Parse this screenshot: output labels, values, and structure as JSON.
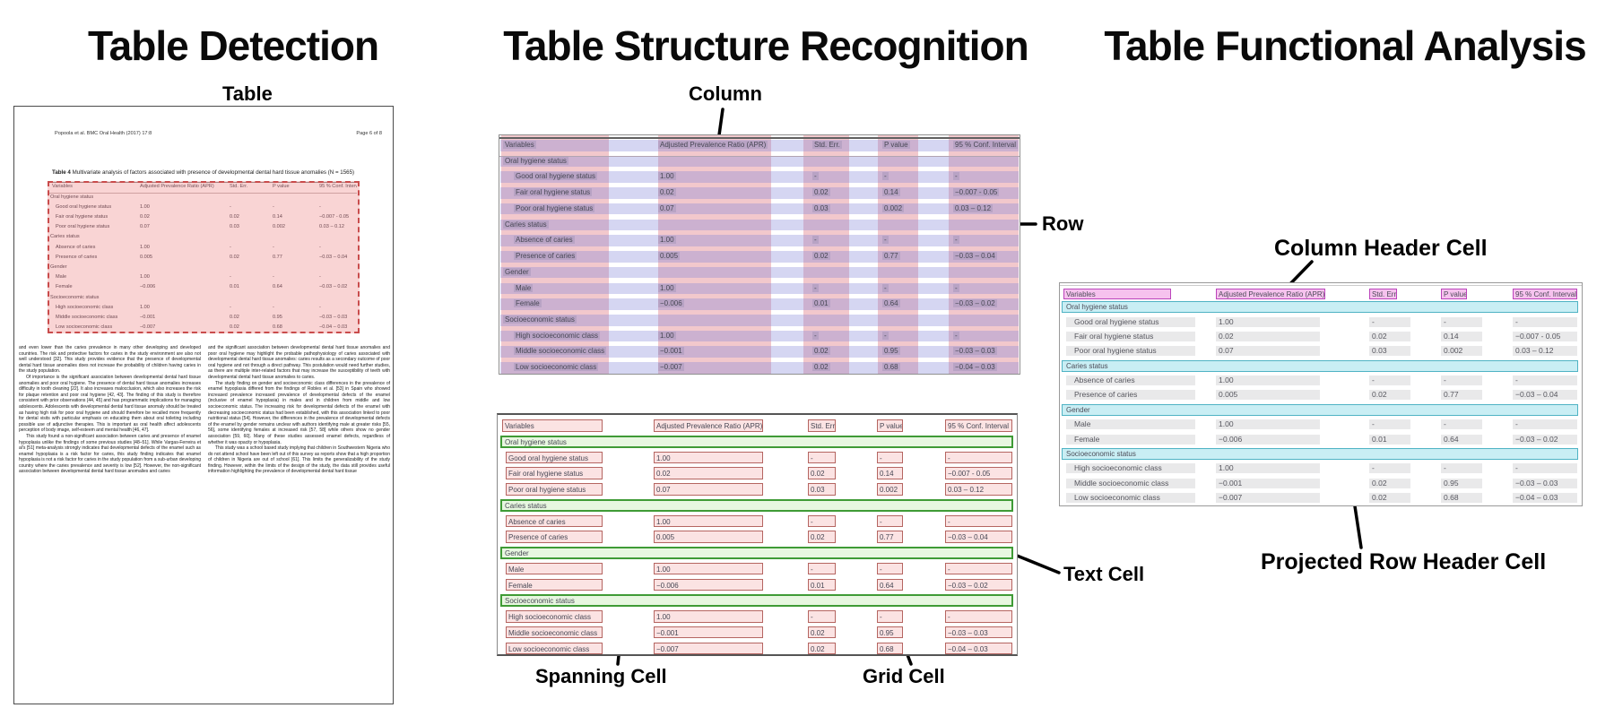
{
  "panels": {
    "detection": {
      "title": "Table Detection",
      "labels": {
        "table": "Table"
      },
      "doc": {
        "header_left": "Popoola et al. BMC Oral Health  (2017) 17:8",
        "header_right": "Page 6 of 8",
        "caption_bold": "Table 4",
        "caption_rest": " Multivariate analysis of factors associated with presence of developmental dental hard tissue anomalies (N = 1565)",
        "body_left": [
          "and even lower than the caries prevalence in many other developing and developed countries. The risk and protective factors for caries in the study environment are also not well understood [32]. This study provides evidence that the presence of developmental dental hard tissue anomalies does not increase the probability of children having caries in the study population.",
          "Of importance is the significant association between developmental dental hard tissue anomalies and poor oral hygiene. The presence of dental hard tissue anomalies increases difficulty in tooth cleaning [22]. It also increases malocclusion, which also increases the risk for plaque retention and poor oral hygiene [42, 43]. The finding of this study is therefore consistent with prior observations [44, 45] and has programmatic implications for managing adolescents. Adolescents with developmental dental hard tissue anomaly should be treated as having high risk for poor oral hygiene and should therefore be recalled more frequently for dental visits with particular emphasis on educating them about oral toileting including possible use of adjunctive therapies. This is important as oral health affect adolescents perception of body image, self-esteem and mental health [46, 47].",
          "This study found a non-significant association between caries and presence of enamel hypoplasia unlike the findings of some previous studies [48–51]. While Vargas-Ferreira et al's [51] meta-analysis strongly indicates that developmental defects of the enamel such as enamel hypoplasia is a risk factor for caries, this study finding indicates that enamel hypoplasia is not a risk factor for caries in the study population from a sub-urban developing country where the caries prevalence and severity is low [52]. However, the non-significant association between developmental dental hard tissue anomalies and caries"
        ],
        "body_right": [
          "and the significant association between developmental dental hard tissue anomalies and poor oral hygiene may highlight the probable pathophysiology of caries associated with developmental dental hard tissue anomalies: caries results as a secondary outcome of poor oral hygiene and not through a direct pathway. This postulation would need further studies, as there are multiple inter-related factors that may increase the susceptibility of teeth with developmental dental hard tissue anomalies to caries.",
          "The study finding on gender and socioeconomic class differences in the prevalence of enamel hypoplasia differed from the findings of Robles et al. [53] in Spain who showed increased prevalence increased prevalence of developmental defects of the enamel (inclusive of enamel hypoplasia) in males and in children from middle and low socioeconomic status. The increasing risk for developmental defects of the enamel with decreasing socioeconomic status had been established, with this association linked to poor nutritional status [54]. However, the differences in the prevalence of developmental defects of the enamel by gender remains unclear with authors identifying male at greater risks [55, 56], some identifying females at increased risk [57, 58] while others show no gender association [59, 60]. Many of these studies assessed enamel defects, regardless of whether it was opacity or hypoplasia.",
          "This study was a school based study implying that children in Southwestern Nigeria who do not attend school have been left out of this survey as reports show that a high proportion of children in Nigeria are out of school [61]. This limits the generalizability of the study finding. However, within the limits of the design of the study, the data still provides useful information highlighting the prevalence of developmental dental hard tissue"
        ]
      }
    },
    "structure": {
      "title": "Table Structure Recognition",
      "labels": {
        "column": "Column",
        "row": "Row",
        "text_cell": "Text Cell",
        "spanning_cell": "Spanning Cell",
        "grid_cell": "Grid Cell"
      }
    },
    "functional": {
      "title": "Table Functional Analysis",
      "labels": {
        "column_header": "Column Header Cell",
        "projected_row_header": "Projected Row Header Cell"
      }
    }
  },
  "table": {
    "headers": [
      "Variables",
      "Adjusted Prevalence Ratio (APR)",
      "Std. Err.",
      "P value",
      "95 % Conf. Interval"
    ],
    "rows": [
      {
        "t": "sec",
        "label": "Oral hygiene status"
      },
      {
        "t": "d",
        "label": "Good oral hygiene status",
        "apr": "1.00",
        "std": "-",
        "p": "-",
        "ci": "-"
      },
      {
        "t": "d",
        "label": "Fair oral hygiene status",
        "apr": "0.02",
        "std": "0.02",
        "p": "0.14",
        "ci": "−0.007 - 0.05"
      },
      {
        "t": "d",
        "label": "Poor oral hygiene status",
        "apr": "0.07",
        "std": "0.03",
        "p": "0.002",
        "ci": "0.03 – 0.12"
      },
      {
        "t": "sec",
        "label": "Caries status"
      },
      {
        "t": "d",
        "label": "Absence of caries",
        "apr": "1.00",
        "std": "-",
        "p": "-",
        "ci": "-"
      },
      {
        "t": "d",
        "label": "Presence of caries",
        "apr": "0.005",
        "std": "0.02",
        "p": "0.77",
        "ci": "−0.03 – 0.04"
      },
      {
        "t": "sec",
        "label": "Gender"
      },
      {
        "t": "d",
        "label": "Male",
        "apr": "1.00",
        "std": "-",
        "p": "-",
        "ci": "-"
      },
      {
        "t": "d",
        "label": "Female",
        "apr": "−0.006",
        "std": "0.01",
        "p": "0.64",
        "ci": "−0.03 – 0.02"
      },
      {
        "t": "sec",
        "label": "Socioeconomic status"
      },
      {
        "t": "d",
        "label": "High socioeconomic class",
        "apr": "1.00",
        "std": "-",
        "p": "-",
        "ci": "-"
      },
      {
        "t": "d",
        "label": "Middle socioeconomic class",
        "apr": "−0.001",
        "std": "0.02",
        "p": "0.95",
        "ci": "−0.03 – 0.03"
      },
      {
        "t": "d",
        "label": "Low socioeconomic class",
        "apr": "−0.007",
        "std": "0.02",
        "p": "0.68",
        "ci": "−0.04 – 0.03"
      }
    ]
  },
  "colors": {
    "detection_box_border": "#c94c4c",
    "detection_fill": "rgba(234,112,112,0.30)",
    "column_band": "rgba(222,118,128,0.40)",
    "row_band": "rgba(128,132,216,0.33)",
    "grid_cell_fill": "#fbe3e3",
    "grid_cell_border": "#b56561",
    "spanning_cell_fill": "#e7f7e0",
    "spanning_cell_border": "#3f9b36",
    "column_header_fill": "#f6c2ee",
    "column_header_border": "#bb44bb",
    "projected_row_header_fill": "#c9eef4",
    "projected_row_header_border": "#4fb3c4"
  }
}
